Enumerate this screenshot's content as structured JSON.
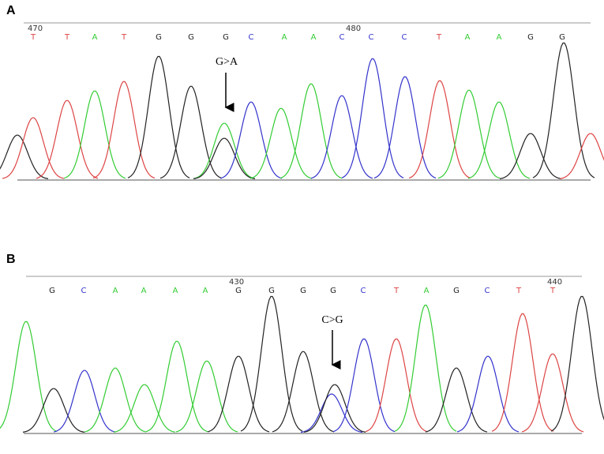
{
  "colors": {
    "A": "#33cc33",
    "C": "#3333cc",
    "G": "#222222",
    "T": "#dd4444"
  },
  "panels": [
    {
      "label": "A",
      "positions": [
        "470",
        "480"
      ],
      "annotation": "G>A",
      "bases": [
        "T",
        "T",
        "A",
        "T",
        "G",
        "G",
        "G",
        "C",
        "A",
        "A",
        "C",
        "C",
        "C",
        "T",
        "A",
        "A",
        "G",
        "G"
      ]
    },
    {
      "label": "B",
      "positions": [
        "430",
        "440"
      ],
      "annotation": "C>G",
      "bases": [
        "G",
        "C",
        "A",
        "A",
        "A",
        "A",
        "G",
        "G",
        "G",
        "G",
        "C",
        "T",
        "A",
        "G",
        "C",
        "T",
        "T"
      ]
    }
  ]
}
